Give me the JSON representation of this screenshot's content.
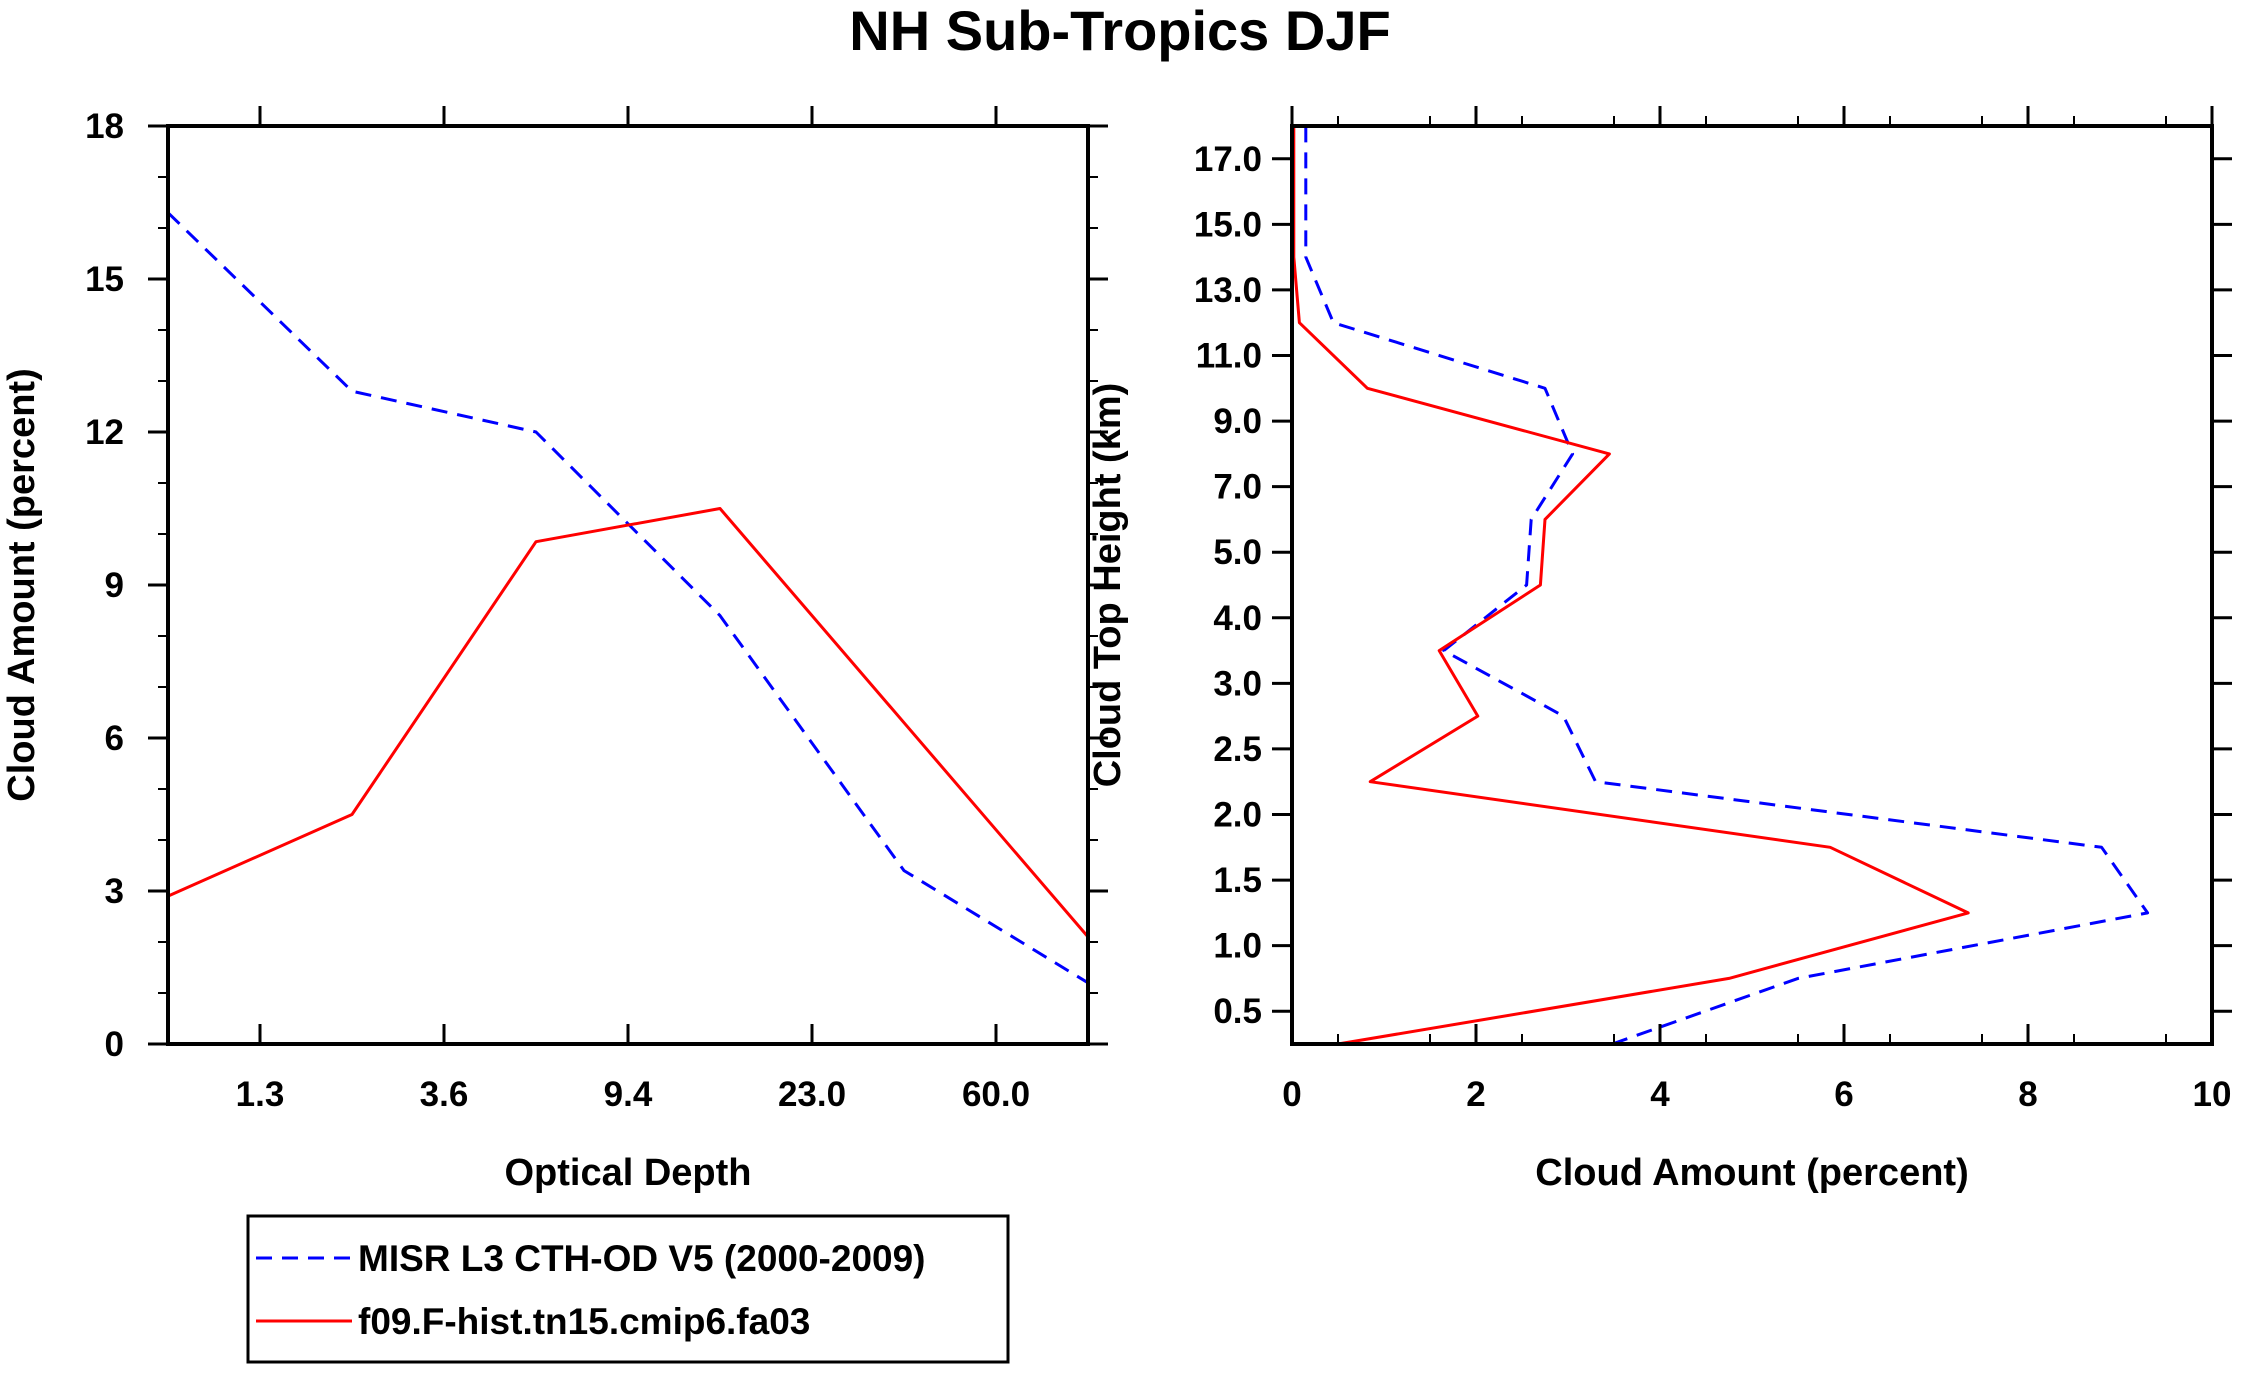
{
  "title": "NH Sub-Tropics DJF",
  "colors": {
    "obs": "#0000ff",
    "model": "#ff0000",
    "axis": "#000000"
  },
  "legend": {
    "entries": [
      {
        "series": 0,
        "label": "MISR L3 CTH-OD V5 (2000-2009)",
        "style": "dashed"
      },
      {
        "series": 1,
        "label": "f09.F-hist.tn15.cmip6.fa03",
        "style": "solid"
      }
    ]
  },
  "chart_data": [
    {
      "type": "line",
      "title": "NH Sub-Tropics DJF",
      "xlabel": "Optical Depth",
      "ylabel": "Cloud Amount (percent)",
      "x_index": [
        0,
        1,
        2,
        3,
        4,
        5
      ],
      "xlim": [
        0,
        5
      ],
      "x_ticks": [
        0.5,
        1.5,
        2.5,
        3.5,
        4.5
      ],
      "x_tick_labels": [
        "1.3",
        "3.6",
        "9.4",
        "23.0",
        "60.0"
      ],
      "ylim": [
        0,
        18
      ],
      "y_ticks": [
        0,
        3,
        6,
        9,
        12,
        15,
        18
      ],
      "y_tick_labels": [
        "0",
        "3",
        "6",
        "9",
        "12",
        "15",
        "18"
      ],
      "series": [
        {
          "name": "MISR L3 CTH-OD V5 (2000-2009)",
          "values": [
            16.3,
            12.8,
            12.0,
            8.4,
            3.4,
            1.2
          ]
        },
        {
          "name": "f09.F-hist.tn15.cmip6.fa03",
          "values": [
            2.9,
            4.5,
            9.85,
            10.5,
            6.3,
            2.1
          ]
        }
      ]
    },
    {
      "type": "line",
      "xlabel": "Cloud Amount (percent)",
      "ylabel": "Cloud Top Height (km)",
      "xlim": [
        0,
        10
      ],
      "x_ticks": [
        0,
        2,
        4,
        6,
        8,
        10
      ],
      "x_tick_labels": [
        "0",
        "2",
        "4",
        "6",
        "8",
        "10"
      ],
      "y_index": [
        0,
        1,
        2,
        3,
        4,
        5,
        6,
        7,
        8,
        9,
        10,
        11,
        12,
        13,
        14
      ],
      "ylim": [
        0,
        14
      ],
      "y_ticks": [
        0.5,
        1.5,
        2.5,
        3.5,
        4.5,
        5.5,
        6.5,
        7.5,
        8.5,
        9.5,
        10.5,
        11.5,
        12.5,
        13.5
      ],
      "y_tick_labels": [
        "0.5",
        "1.0",
        "1.5",
        "2.0",
        "2.5",
        "3.0",
        "4.0",
        "5.0",
        "7.0",
        "9.0",
        "11.0",
        "13.0",
        "15.0",
        "17.0"
      ],
      "series": [
        {
          "name": "MISR L3 CTH-OD V5 (2000-2009)",
          "values": [
            3.48,
            5.5,
            9.3,
            8.8,
            3.3,
            2.95,
            1.65,
            2.55,
            2.6,
            3.05,
            2.75,
            0.45,
            0.15,
            0.15,
            0.15
          ]
        },
        {
          "name": "f09.F-hist.tn15.cmip6.fa03",
          "values": [
            0.5,
            4.75,
            7.35,
            5.85,
            0.85,
            2.02,
            1.6,
            2.7,
            2.75,
            3.45,
            0.82,
            0.08,
            0.02,
            0.02,
            0.02
          ]
        }
      ]
    }
  ]
}
